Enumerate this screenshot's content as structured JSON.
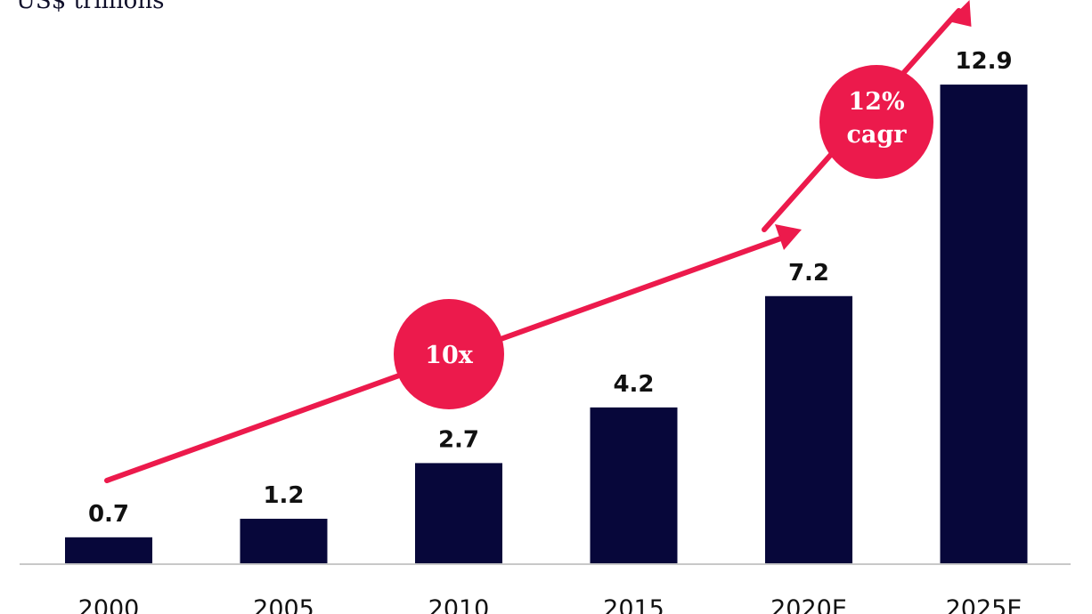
{
  "unit_label": "US$ trillions",
  "colors": {
    "bar": "#07073a",
    "accent": "#ec1a4c",
    "axis": "#c8c8c8",
    "text": "#111111"
  },
  "chart_data": {
    "type": "bar",
    "categories": [
      "2000",
      "2005",
      "2010",
      "2015",
      "2020E",
      "2025E"
    ],
    "values": [
      0.7,
      1.2,
      2.7,
      4.2,
      7.2,
      12.9
    ],
    "value_labels": [
      "0.7",
      "1.2",
      "2.7",
      "4.2",
      "7.2",
      "12.9"
    ],
    "ylabel": "US$ trillions",
    "ylim": [
      0,
      13.6
    ],
    "grid": false,
    "annotations": [
      {
        "text": "10x",
        "lines": [
          "10x"
        ],
        "from_category": "2000",
        "to_category": "2020E"
      },
      {
        "text": "12% cagr",
        "lines": [
          "12%",
          "cagr"
        ],
        "from_category": "2020E",
        "to_category": "2025E"
      }
    ]
  }
}
